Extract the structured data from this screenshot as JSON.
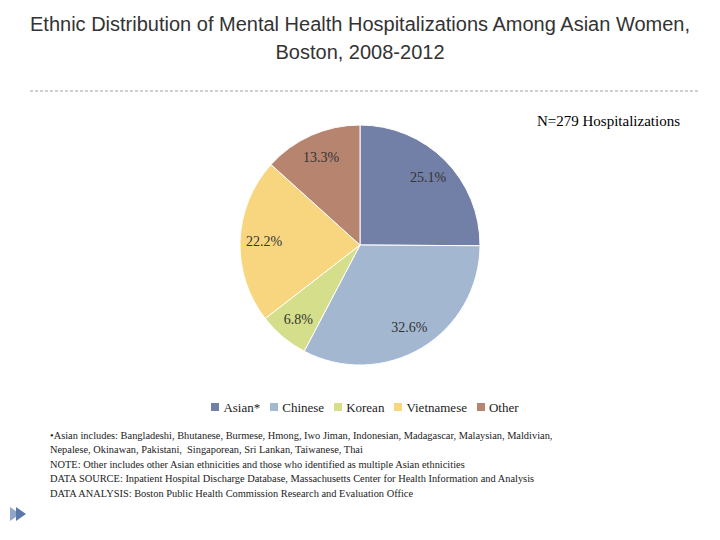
{
  "chart_data": {
    "type": "pie",
    "title": "Ethnic Distribution of Mental Health Hospitalizations Among Asian Women, Boston, 2008-2012",
    "subtitle": "N=279 Hospitalizations",
    "categories": [
      "Asian*",
      "Chinese",
      "Korean",
      "Vietnamese",
      "Other"
    ],
    "values": [
      25.1,
      32.6,
      6.8,
      22.2,
      13.3
    ],
    "value_labels": [
      "25.1%",
      "32.6%",
      "6.8%",
      "22.2%",
      "13.3%"
    ],
    "colors": [
      "#727fa7",
      "#a3b7d0",
      "#d5df8b",
      "#f8d67f",
      "#b6846f"
    ],
    "data_labels": true,
    "legend": "bottom",
    "notes": [
      "•Asian includes: Bangladeshi, Bhutanese, Burmese, Hmong, Iwo Jiman, Indonesian, Madagascar, Malaysian, Maldivian,",
      "Nepalese, Okinawan, Pakistani,  Singaporean, Sri Lankan, Taiwanese, Thai",
      "NOTE: Other includes other Asian ethnicities and those who identified as multiple Asian ethnicities",
      "DATA SOURCE: Inpatient Hospital Discharge Database, Massachusetts Center for Health Information and Analysis",
      "DATA ANALYSIS: Boston Public Health Commission Research and Evaluation Office"
    ]
  }
}
